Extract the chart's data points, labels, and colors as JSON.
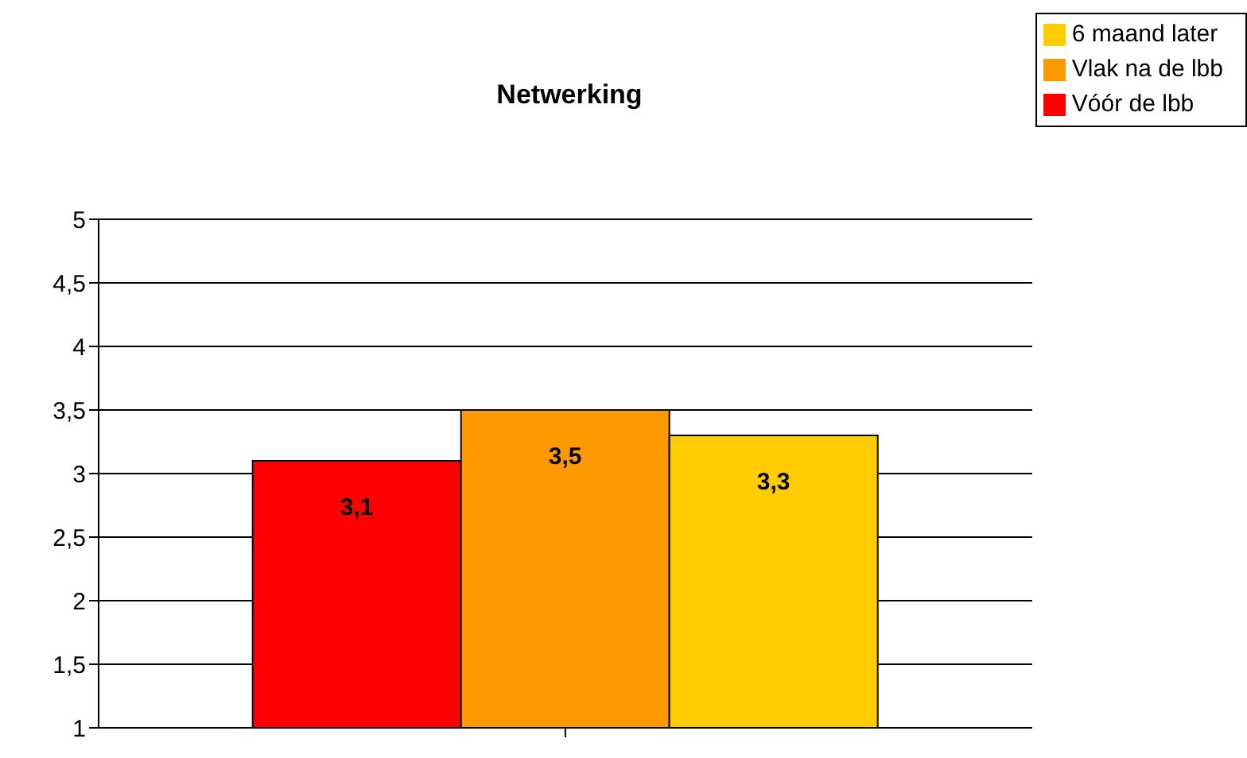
{
  "chart_data": {
    "type": "bar",
    "title": "Netwerking",
    "categories": [
      null
    ],
    "series": [
      {
        "name": "Vóór de lbb",
        "color": "#ff0000",
        "values": [
          3.1
        ],
        "value_labels": [
          "3,1"
        ]
      },
      {
        "name": "Vlak na de lbb",
        "color": "#ff9900",
        "values": [
          3.5
        ],
        "value_labels": [
          "3,5"
        ]
      },
      {
        "name": "6 maand later",
        "color": "#ffcc00",
        "values": [
          3.3
        ],
        "value_labels": [
          "3,3"
        ]
      }
    ],
    "ylim": [
      1,
      5
    ],
    "yticks": [
      1,
      {
        "value": 1.5,
        "label": "1,5"
      },
      2,
      {
        "value": 2.5,
        "label": "2,5"
      },
      3,
      {
        "value": 3.5,
        "label": "3,5"
      },
      4,
      {
        "value": 4.5,
        "label": "4,5"
      },
      5
    ],
    "grid": "y",
    "legend": "top right"
  }
}
